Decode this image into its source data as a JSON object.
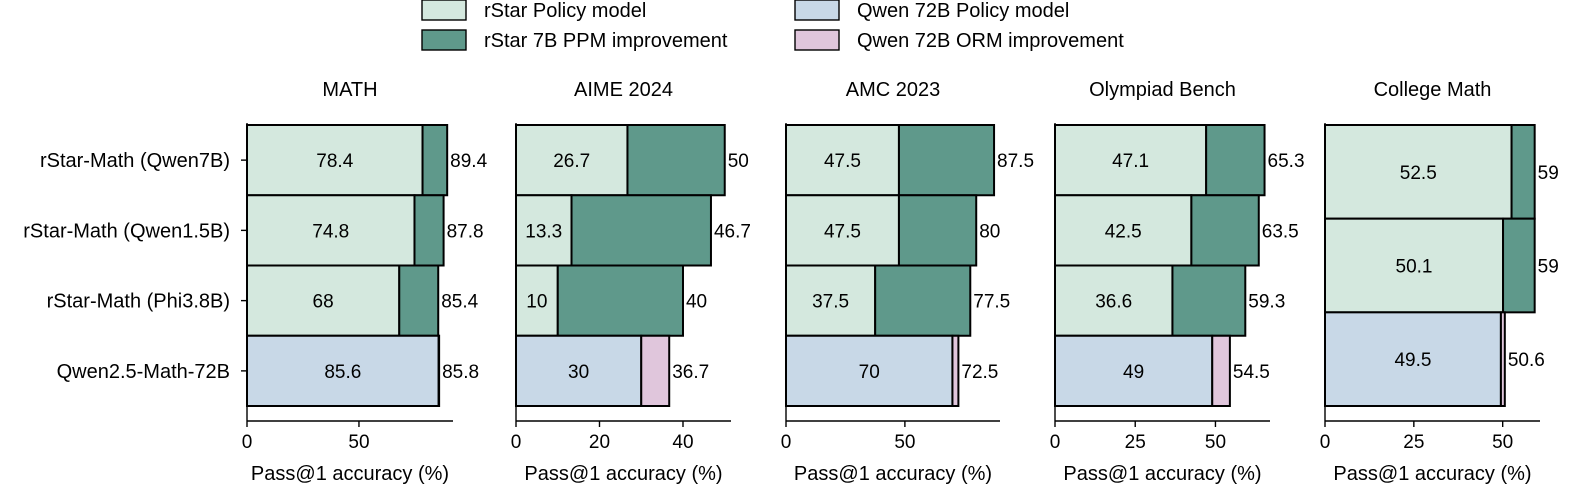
{
  "legend": {
    "items": [
      {
        "label": "rStar Policy model",
        "color": "#d4e8de"
      },
      {
        "label": "rStar 7B PPM improvement",
        "color": "#5f998b"
      },
      {
        "label": "Qwen 72B Policy model",
        "color": "#c8d8e7"
      },
      {
        "label": "Qwen 72B ORM improvement",
        "color": "#e0c6dc"
      }
    ]
  },
  "colors": {
    "rstar_base": "#d4e8de",
    "rstar_improve": "#5f998b",
    "qwen_base": "#c8d8e7",
    "qwen_improve": "#e0c6dc",
    "inner_label": "#9a5a4e"
  },
  "chart_data": [
    {
      "type": "bar",
      "orientation": "horizontal",
      "stacked": true,
      "title": "MATH",
      "xlabel": "Pass@1 accuracy (%)",
      "categories": [
        "rStar-Math (Qwen7B)",
        "rStar-Math (Qwen1.5B)",
        "rStar-Math (Phi3.8B)",
        "Qwen2.5-Math-72B"
      ],
      "base": [
        78.4,
        74.8,
        68,
        85.6
      ],
      "total": [
        89.4,
        87.8,
        85.4,
        85.8
      ],
      "base_labels": [
        "78.4",
        "74.8",
        "68",
        "85.6"
      ],
      "total_labels": [
        "89.4",
        "87.8",
        "85.4",
        "85.8"
      ],
      "xlim": [
        0,
        92
      ],
      "xticks": [
        0,
        50
      ]
    },
    {
      "type": "bar",
      "orientation": "horizontal",
      "stacked": true,
      "title": "AIME 2024",
      "xlabel": "Pass@1 accuracy (%)",
      "categories": [
        "rStar-Math (Qwen7B)",
        "rStar-Math (Qwen1.5B)",
        "rStar-Math (Phi3.8B)",
        "Qwen2.5-Math-72B"
      ],
      "base": [
        26.7,
        13.3,
        10,
        30
      ],
      "total": [
        50,
        46.7,
        40,
        36.7
      ],
      "base_labels": [
        "26.7",
        "13.3",
        "10",
        "30"
      ],
      "total_labels": [
        "50",
        "46.7",
        "40",
        "36.7"
      ],
      "xlim": [
        0,
        51.5
      ],
      "xticks": [
        0,
        20,
        40
      ]
    },
    {
      "type": "bar",
      "orientation": "horizontal",
      "stacked": true,
      "title": "AMC 2023",
      "xlabel": "Pass@1 accuracy (%)",
      "categories": [
        "rStar-Math (Qwen7B)",
        "rStar-Math (Qwen1.5B)",
        "rStar-Math (Phi3.8B)",
        "Qwen2.5-Math-72B"
      ],
      "base": [
        47.5,
        47.5,
        37.5,
        70
      ],
      "total": [
        87.5,
        80,
        77.5,
        72.5
      ],
      "base_labels": [
        "47.5",
        "47.5",
        "37.5",
        "70"
      ],
      "total_labels": [
        "87.5",
        "80",
        "77.5",
        "72.5"
      ],
      "xlim": [
        0,
        90
      ],
      "xticks": [
        0,
        50
      ]
    },
    {
      "type": "bar",
      "orientation": "horizontal",
      "stacked": true,
      "title": "Olympiad Bench",
      "xlabel": "Pass@1 accuracy (%)",
      "categories": [
        "rStar-Math (Qwen7B)",
        "rStar-Math (Qwen1.5B)",
        "rStar-Math (Phi3.8B)",
        "Qwen2.5-Math-72B"
      ],
      "base": [
        47.1,
        42.5,
        36.6,
        49
      ],
      "total": [
        65.3,
        63.5,
        59.3,
        54.5
      ],
      "base_labels": [
        "47.1",
        "42.5",
        "36.6",
        "49"
      ],
      "total_labels": [
        "65.3",
        "63.5",
        "59.3",
        "54.5"
      ],
      "xlim": [
        0,
        67
      ],
      "xticks": [
        0,
        25,
        50
      ]
    },
    {
      "type": "bar",
      "orientation": "horizontal",
      "stacked": true,
      "title": "College Math",
      "xlabel": "Pass@1 accuracy (%)",
      "categories": [
        "rStar-Math (Qwen7B)",
        "rStar-Math (Qwen1.5B)",
        "Qwen2.5-Math-72B"
      ],
      "base": [
        52.5,
        50.1,
        49.5
      ],
      "total": [
        59,
        59,
        50.6
      ],
      "base_labels": [
        "52.5",
        "50.1",
        "49.5"
      ],
      "total_labels": [
        "59",
        "59",
        "50.6"
      ],
      "xlim": [
        0,
        60.5
      ],
      "xticks": [
        0,
        25,
        50
      ]
    }
  ]
}
